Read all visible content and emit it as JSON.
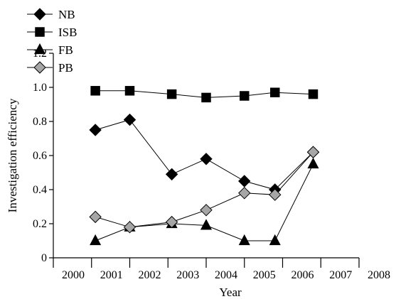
{
  "chart_data": {
    "type": "line",
    "title": "",
    "xlabel": "Year",
    "ylabel": "Investigation efficiency",
    "xlim": [
      2000,
      2008
    ],
    "ylim": [
      0,
      1.2
    ],
    "x_ticks": [
      "2000",
      "2001",
      "2002",
      "2003",
      "2004",
      "2005",
      "2006",
      "2007",
      "2008"
    ],
    "y_ticks": [
      "0",
      "0.2",
      "0.4",
      "0.6",
      "0.8",
      "1.0",
      "1.2"
    ],
    "grid": false,
    "legend_position": "top-left",
    "series": [
      {
        "name": "NB",
        "marker": "diamond",
        "marker_color": "#000000",
        "points": [
          [
            2001.1,
            0.75
          ],
          [
            2002.0,
            0.81
          ],
          [
            2003.1,
            0.49
          ],
          [
            2004.0,
            0.58
          ],
          [
            2005.0,
            0.45
          ],
          [
            2005.8,
            0.4
          ],
          [
            2006.8,
            0.62
          ]
        ]
      },
      {
        "name": "ISB",
        "marker": "square",
        "marker_color": "#000000",
        "points": [
          [
            2001.1,
            0.98
          ],
          [
            2002.0,
            0.98
          ],
          [
            2003.1,
            0.96
          ],
          [
            2004.0,
            0.94
          ],
          [
            2005.0,
            0.95
          ],
          [
            2005.8,
            0.97
          ],
          [
            2006.8,
            0.96
          ]
        ]
      },
      {
        "name": "FB",
        "marker": "triangle",
        "marker_color": "#000000",
        "points": [
          [
            2001.1,
            0.1
          ],
          [
            2002.0,
            0.18
          ],
          [
            2003.1,
            0.2
          ],
          [
            2004.0,
            0.19
          ],
          [
            2005.0,
            0.1
          ],
          [
            2005.8,
            0.1
          ],
          [
            2006.8,
            0.55
          ]
        ]
      },
      {
        "name": "PB",
        "marker": "diamond",
        "marker_color": "#a6a6a6",
        "points": [
          [
            2001.1,
            0.24
          ],
          [
            2002.0,
            0.18
          ],
          [
            2003.1,
            0.21
          ],
          [
            2004.0,
            0.28
          ],
          [
            2005.0,
            0.38
          ],
          [
            2005.8,
            0.37
          ],
          [
            2006.8,
            0.62
          ]
        ]
      }
    ]
  }
}
